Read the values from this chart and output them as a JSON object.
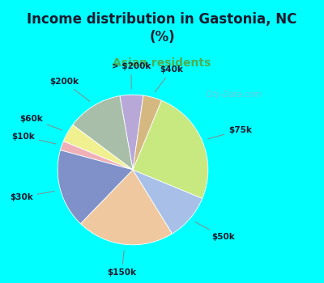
{
  "title": "Income distribution in Gastonia, NC\n(%)",
  "subtitle": "Asian residents",
  "bg_color": "#00FFFF",
  "chart_bg_start": "#e8f5ef",
  "chart_bg_end": "#cceedd",
  "labels": [
    "> $200k",
    "$200k",
    "$60k",
    "$10k",
    "$30k",
    "$150k",
    "$50k",
    "$75k",
    "$40k"
  ],
  "values": [
    5,
    12,
    4,
    2,
    17,
    21,
    10,
    25,
    4
  ],
  "colors": [
    "#b8a8d8",
    "#a8bea8",
    "#f0f090",
    "#f0b0b8",
    "#8090c8",
    "#f0c8a0",
    "#a8c0e8",
    "#c8e880",
    "#d4b880"
  ],
  "startangle": 82,
  "watermark": "City-Data.com"
}
